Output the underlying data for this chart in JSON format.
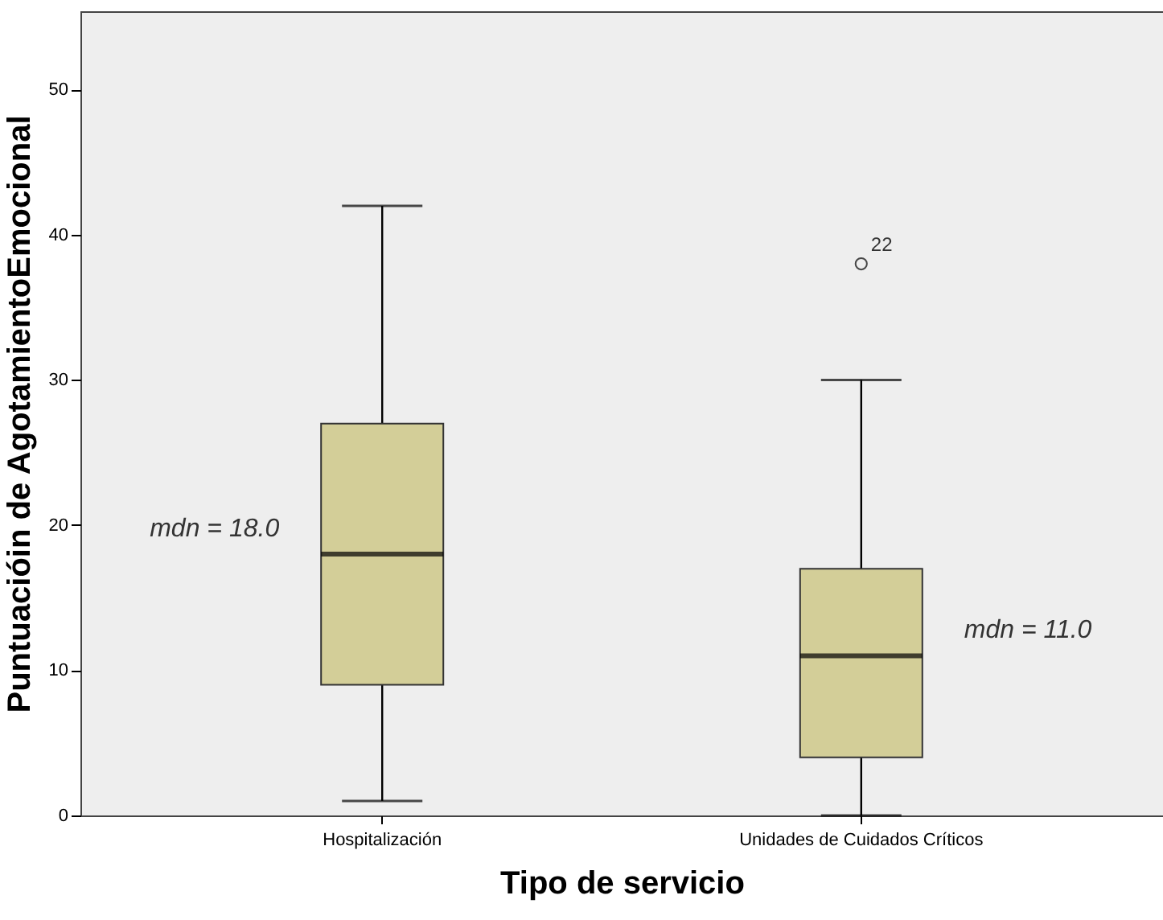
{
  "chart_data": {
    "type": "box",
    "xlabel": "Tipo de servicio",
    "ylabel": "Puntuacióin de AgotamientoEmocional",
    "categories": [
      "Hospitalización",
      "Unidades de Cuidados Críticos"
    ],
    "boxes": [
      {
        "low": 1,
        "q1": 9,
        "median": 18,
        "q3": 27,
        "high": 42
      },
      {
        "low": 0,
        "q1": 4,
        "median": 11,
        "q3": 17,
        "high": 30,
        "outliers": [
          38
        ]
      }
    ],
    "color": "#d3ce98",
    "ylim": [
      0,
      55.4
    ],
    "yticks": [
      0,
      10,
      20,
      30,
      40,
      50
    ],
    "grid": false,
    "annotations": [
      "mdn = 18.0",
      "mdn = 11.0",
      "22"
    ]
  }
}
